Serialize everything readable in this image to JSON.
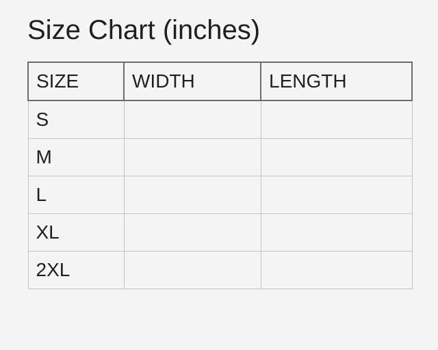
{
  "title": "Size Chart (inches)",
  "table": {
    "headers": [
      "SIZE",
      "WIDTH",
      "LENGTH"
    ],
    "rows": [
      [
        "S",
        "",
        ""
      ],
      [
        "M",
        "",
        ""
      ],
      [
        "L",
        "",
        ""
      ],
      [
        "XL",
        "",
        ""
      ],
      [
        "2XL",
        "",
        ""
      ]
    ]
  },
  "colors": {
    "background": "#f4f4f4",
    "text": "#1f1f1f",
    "header_border": "#6b6b6b",
    "cell_border": "#c4c4c4"
  }
}
